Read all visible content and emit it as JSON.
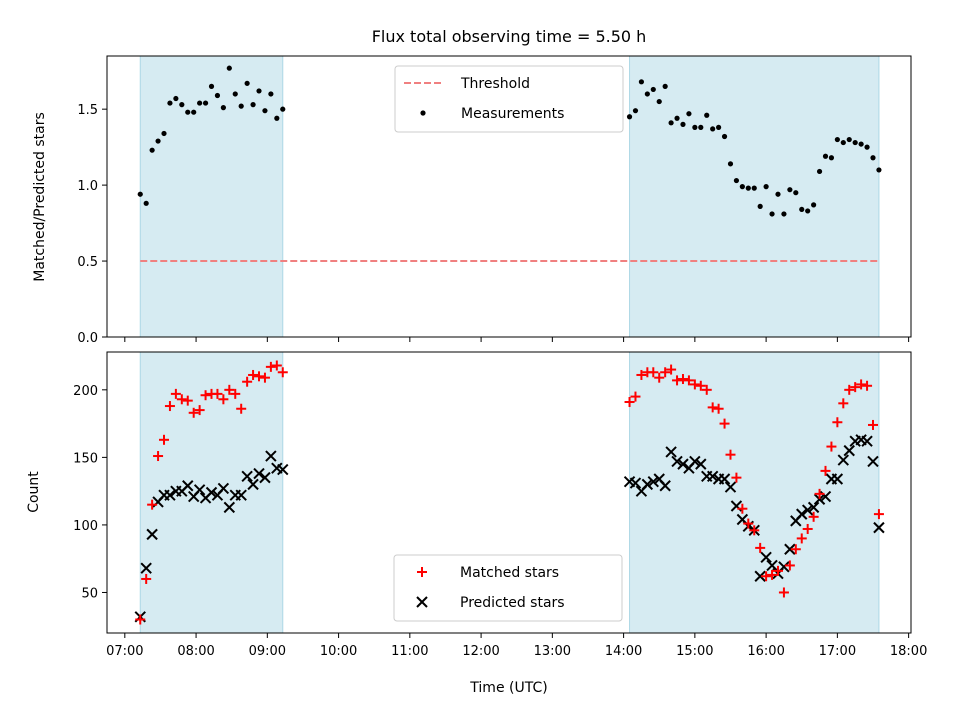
{
  "chart_data": [
    {
      "panel": "top",
      "type": "scatter",
      "title": "Flux total observing time = 5.50 h",
      "ylabel": "Matched/Predicted stars",
      "ylim": [
        0,
        1.85
      ],
      "yticks": [
        0.0,
        0.5,
        1.0,
        1.5
      ],
      "ytick_labels": [
        "0.0",
        "0.5",
        "1.0",
        "1.5"
      ],
      "grid": false,
      "legend_position": "top-center",
      "threshold": {
        "name": "Threshold",
        "value": 0.5,
        "color": "#f08080",
        "style": "dashed"
      },
      "shaded_intervals": [
        [
          "07:13",
          "09:13"
        ],
        [
          "14:05",
          "17:35"
        ]
      ],
      "series": [
        {
          "name": "Measurements",
          "marker": "dot",
          "color": "#000000",
          "x": [
            "07:13",
            "07:18",
            "07:23",
            "07:28",
            "07:33",
            "07:38",
            "07:43",
            "07:48",
            "07:53",
            "07:58",
            "08:03",
            "08:08",
            "08:13",
            "08:18",
            "08:23",
            "08:28",
            "08:33",
            "08:38",
            "08:43",
            "08:48",
            "08:53",
            "08:58",
            "09:03",
            "09:08",
            "09:13",
            "14:05",
            "14:10",
            "14:15",
            "14:20",
            "14:25",
            "14:30",
            "14:35",
            "14:40",
            "14:45",
            "14:50",
            "14:55",
            "15:00",
            "15:05",
            "15:10",
            "15:15",
            "15:20",
            "15:25",
            "15:30",
            "15:35",
            "15:40",
            "15:45",
            "15:50",
            "15:55",
            "16:00",
            "16:05",
            "16:10",
            "16:15",
            "16:20",
            "16:25",
            "16:30",
            "16:35",
            "16:40",
            "16:45",
            "16:50",
            "16:55",
            "17:00",
            "17:05",
            "17:10",
            "17:15",
            "17:20",
            "17:25",
            "17:30",
            "17:35"
          ],
          "y": [
            0.94,
            0.88,
            1.23,
            1.29,
            1.34,
            1.54,
            1.57,
            1.53,
            1.48,
            1.48,
            1.54,
            1.54,
            1.65,
            1.59,
            1.51,
            1.77,
            1.6,
            1.52,
            1.67,
            1.53,
            1.62,
            1.49,
            1.6,
            1.44,
            1.5,
            1.45,
            1.49,
            1.68,
            1.6,
            1.63,
            1.55,
            1.65,
            1.41,
            1.44,
            1.4,
            1.47,
            1.38,
            1.38,
            1.46,
            1.37,
            1.38,
            1.32,
            1.14,
            1.03,
            0.99,
            0.98,
            0.98,
            0.86,
            0.99,
            0.81,
            0.94,
            0.81,
            0.97,
            0.95,
            0.84,
            0.83,
            0.87,
            1.09,
            1.19,
            1.18,
            1.3,
            1.28,
            1.3,
            1.28,
            1.27,
            1.25,
            1.18,
            1.1
          ]
        }
      ]
    },
    {
      "panel": "bottom",
      "type": "scatter",
      "xlabel": "Time (UTC)",
      "ylabel": "Count",
      "xlim": [
        "06:45",
        "18:02"
      ],
      "ylim": [
        20,
        228
      ],
      "yticks": [
        50,
        100,
        150,
        200
      ],
      "xtick_labels": [
        "07:00",
        "08:00",
        "09:00",
        "10:00",
        "11:00",
        "12:00",
        "13:00",
        "14:00",
        "15:00",
        "16:00",
        "17:00",
        "18:00"
      ],
      "grid": false,
      "legend_position": "bottom-center",
      "shaded_intervals": [
        [
          "07:13",
          "09:13"
        ],
        [
          "14:05",
          "17:35"
        ]
      ],
      "series": [
        {
          "name": "Matched stars",
          "marker": "plus",
          "color": "#ff0000",
          "x": [
            "07:13",
            "07:18",
            "07:23",
            "07:28",
            "07:33",
            "07:38",
            "07:43",
            "07:48",
            "07:53",
            "07:58",
            "08:03",
            "08:08",
            "08:13",
            "08:18",
            "08:23",
            "08:28",
            "08:33",
            "08:38",
            "08:43",
            "08:48",
            "08:53",
            "08:58",
            "09:03",
            "09:08",
            "09:13",
            "14:05",
            "14:10",
            "14:15",
            "14:20",
            "14:25",
            "14:30",
            "14:35",
            "14:40",
            "14:45",
            "14:50",
            "14:55",
            "15:00",
            "15:05",
            "15:10",
            "15:15",
            "15:20",
            "15:25",
            "15:30",
            "15:35",
            "15:40",
            "15:45",
            "15:50",
            "15:55",
            "16:00",
            "16:05",
            "16:10",
            "16:15",
            "16:20",
            "16:25",
            "16:30",
            "16:35",
            "16:40",
            "16:45",
            "16:50",
            "16:55",
            "17:00",
            "17:05",
            "17:10",
            "17:15",
            "17:20",
            "17:25",
            "17:30",
            "17:35"
          ],
          "y": [
            30,
            60,
            115,
            151,
            163,
            188,
            197,
            193,
            192,
            183,
            185,
            196,
            197,
            197,
            193,
            200,
            197,
            186,
            206,
            211,
            210,
            209,
            217,
            218,
            213,
            191,
            195,
            211,
            213,
            213,
            209,
            213,
            215,
            207,
            208,
            207,
            204,
            203,
            200,
            187,
            186,
            175,
            152,
            135,
            112,
            101,
            96,
            83,
            62,
            63,
            66,
            50,
            70,
            82,
            90,
            97,
            106,
            123,
            140,
            158,
            176,
            190,
            200,
            202,
            204,
            203,
            174,
            108
          ]
        },
        {
          "name": "Predicted stars",
          "marker": "x",
          "color": "#000000",
          "x": [
            "07:13",
            "07:18",
            "07:23",
            "07:28",
            "07:33",
            "07:38",
            "07:43",
            "07:48",
            "07:53",
            "07:58",
            "08:03",
            "08:08",
            "08:13",
            "08:18",
            "08:23",
            "08:28",
            "08:33",
            "08:38",
            "08:43",
            "08:48",
            "08:53",
            "08:58",
            "09:03",
            "09:08",
            "09:13",
            "14:05",
            "14:10",
            "14:15",
            "14:20",
            "14:25",
            "14:30",
            "14:35",
            "14:40",
            "14:45",
            "14:50",
            "14:55",
            "15:00",
            "15:05",
            "15:10",
            "15:15",
            "15:20",
            "15:25",
            "15:30",
            "15:35",
            "15:40",
            "15:45",
            "15:50",
            "15:55",
            "16:00",
            "16:05",
            "16:10",
            "16:15",
            "16:20",
            "16:25",
            "16:30",
            "16:35",
            "16:40",
            "16:45",
            "16:50",
            "16:55",
            "17:00",
            "17:05",
            "17:10",
            "17:15",
            "17:20",
            "17:25",
            "17:30",
            "17:35"
          ],
          "y": [
            32,
            68,
            93,
            117,
            122,
            122,
            125,
            125,
            129,
            121,
            126,
            120,
            124,
            122,
            127,
            113,
            122,
            122,
            136,
            130,
            138,
            135,
            151,
            142,
            141,
            132,
            131,
            125,
            130,
            132,
            134,
            129,
            154,
            147,
            145,
            142,
            147,
            145,
            136,
            136,
            134,
            134,
            128,
            114,
            104,
            99,
            96,
            62,
            76,
            70,
            64,
            69,
            82,
            103,
            108,
            111,
            113,
            119,
            121,
            134,
            134,
            148,
            155,
            162,
            163,
            162,
            147,
            98
          ]
        }
      ]
    }
  ]
}
